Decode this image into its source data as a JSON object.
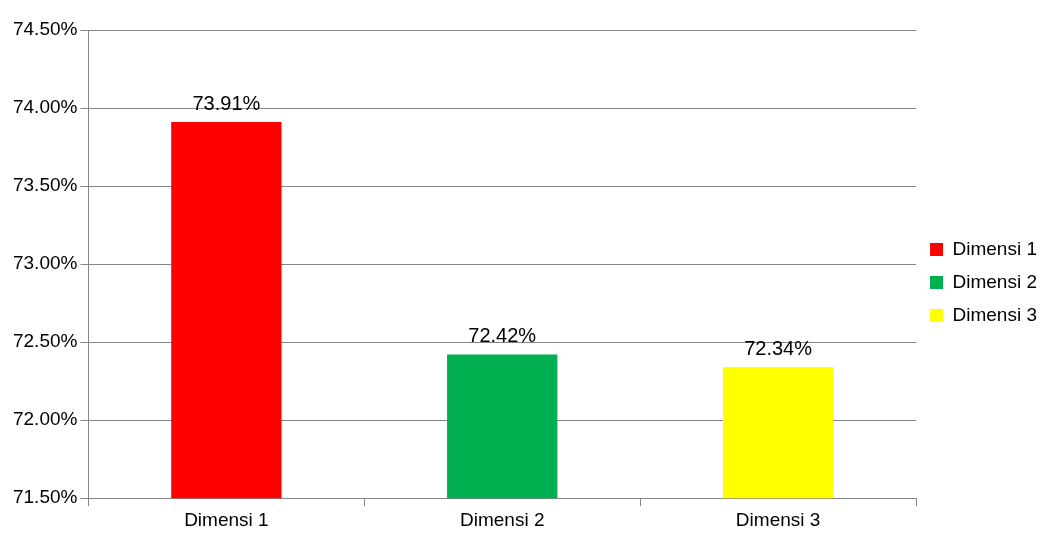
{
  "chart_data": {
    "type": "bar",
    "categories": [
      "Dimensi 1",
      "Dimensi 2",
      "Dimensi 3"
    ],
    "series": [
      {
        "name": "Dimensi 1",
        "color": "#ff0000",
        "values": [
          73.91,
          null,
          null
        ],
        "value_labels": [
          "73.91%",
          null,
          null
        ]
      },
      {
        "name": "Dimensi 2",
        "color": "#00b050",
        "values": [
          null,
          72.42,
          null
        ],
        "value_labels": [
          null,
          "72.42%",
          null
        ]
      },
      {
        "name": "Dimensi 3",
        "color": "#ffff00",
        "values": [
          null,
          null,
          72.34
        ],
        "value_labels": [
          null,
          null,
          "72.34%"
        ]
      }
    ],
    "ylim": [
      71.5,
      74.5
    ],
    "yticks": [
      {
        "value": 71.5,
        "label": "71.50%"
      },
      {
        "value": 72,
        "label": "72.00%"
      },
      {
        "value": 72.5,
        "label": "72.50%"
      },
      {
        "value": 73,
        "label": "73.00%"
      },
      {
        "value": 73.5,
        "label": "73.50%"
      },
      {
        "value": 74,
        "label": "74.00%"
      },
      {
        "value": 74.5,
        "label": "74.50%"
      }
    ],
    "grid": "y",
    "legend": "right"
  }
}
